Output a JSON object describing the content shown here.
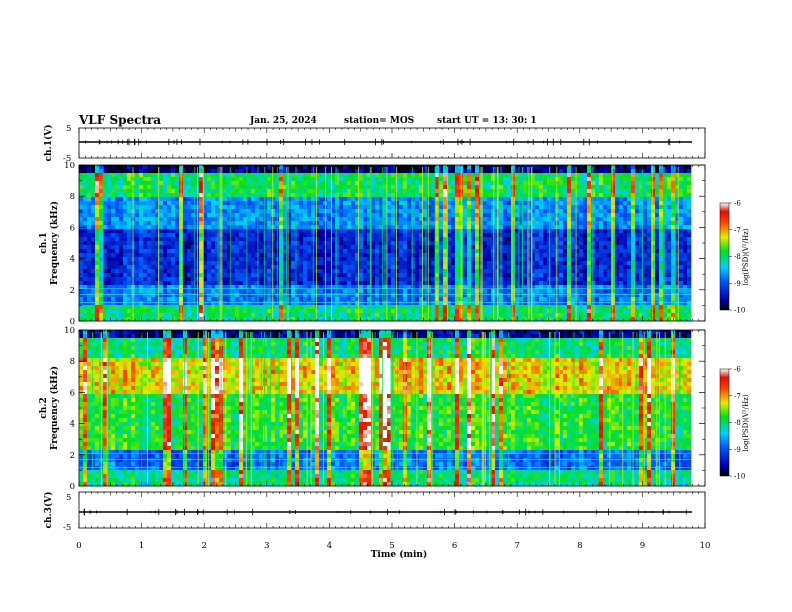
{
  "header": {
    "title": "VLF Spectra",
    "date": "Jan. 25, 2024",
    "station": "station= MOS",
    "start_ut": "start  UT =   13: 30: 1"
  },
  "chart_data": [
    {
      "type": "line",
      "panel": "waveform",
      "ylabel": "ch.1(V)",
      "ylim": [
        -5,
        5
      ],
      "yticks": [
        "5",
        "-5"
      ],
      "xlim": [
        0,
        10
      ],
      "series": [
        {
          "values_note_free": true,
          "baseline": 0
        }
      ]
    },
    {
      "type": "heatmap",
      "panel": "spectrogram",
      "ylabel_top": "ch.1",
      "ylabel": "Frequency (kHz)",
      "ylim": [
        0,
        10
      ],
      "yticks": [
        "0",
        "2",
        "4",
        "6",
        "8",
        "10"
      ],
      "xlim": [
        0,
        10
      ],
      "colorbar": {
        "label": "log(PSD)(V²/Hz)",
        "ticks": [
          "-6",
          "-7",
          "-8",
          "-9",
          "-10"
        ],
        "range": [
          -10,
          -6
        ]
      }
    },
    {
      "type": "heatmap",
      "panel": "spectrogram",
      "ylabel_top": "ch.2",
      "ylabel": "Frequency (kHz)",
      "ylim": [
        0,
        10
      ],
      "yticks": [
        "0",
        "2",
        "4",
        "6",
        "8",
        "10"
      ],
      "xlim": [
        0,
        10
      ],
      "colorbar": {
        "label": "log(PSD)(V²/Hz)",
        "ticks": [
          "-6",
          "-7",
          "-8",
          "-9",
          "-10"
        ],
        "range": [
          -10,
          -6
        ]
      }
    },
    {
      "type": "line",
      "panel": "waveform",
      "ylabel": "ch.3(V)",
      "ylim": [
        -5,
        5
      ],
      "yticks": [
        "5",
        "-5"
      ],
      "xlim": [
        0,
        10
      ],
      "xlabel": "Time (min)",
      "xticks": [
        "0",
        "1",
        "2",
        "3",
        "4",
        "5",
        "6",
        "7",
        "8",
        "9",
        "10"
      ]
    }
  ]
}
